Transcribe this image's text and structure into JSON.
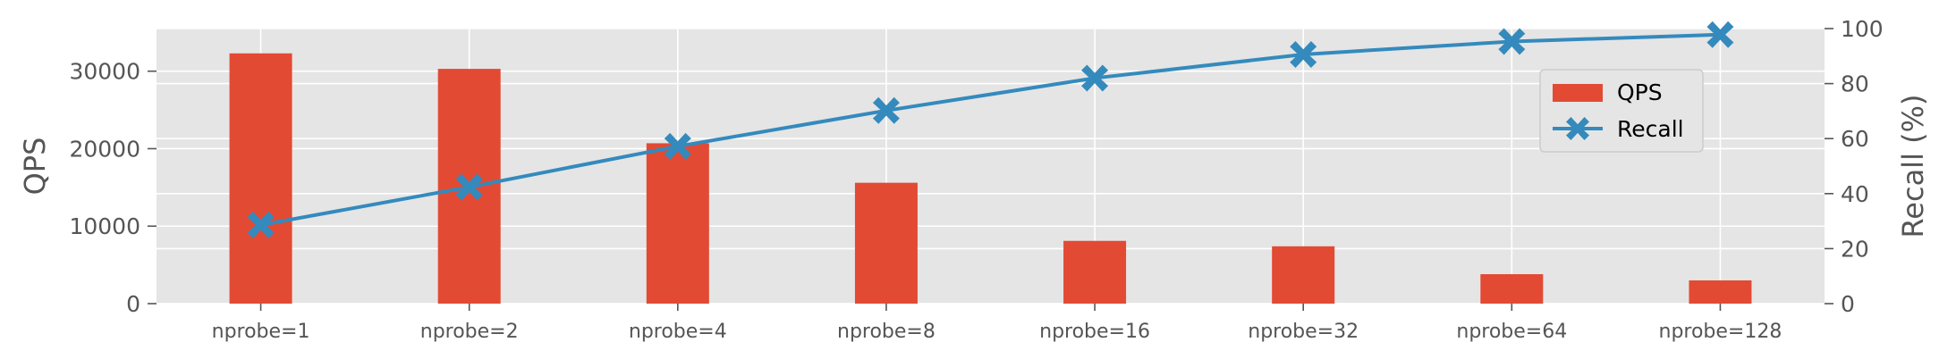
{
  "chart_data": {
    "type": "bar+line",
    "categories": [
      "nprobe=1",
      "nprobe=2",
      "nprobe=4",
      "nprobe=8",
      "nprobe=16",
      "nprobe=32",
      "nprobe=64",
      "nprobe=128"
    ],
    "series": [
      {
        "name": "QPS",
        "type": "bar",
        "axis": "left",
        "color": "#E24A33",
        "values": [
          32300,
          30300,
          20700,
          15600,
          8100,
          7400,
          3800,
          3000
        ]
      },
      {
        "name": "Recall",
        "type": "line",
        "axis": "right",
        "color": "#348ABD",
        "marker": "x-filled",
        "values": [
          28.6,
          42.4,
          57.2,
          70.2,
          82.0,
          90.6,
          95.3,
          97.8
        ]
      }
    ],
    "ylabel_left": "QPS",
    "ylabel_right": "Recall (%)",
    "ylim_left": [
      0,
      35500
    ],
    "yticks_left": [
      "0",
      "10000",
      "20000",
      "30000"
    ],
    "ylim_right": [
      0,
      100
    ],
    "yticks_right": [
      "0",
      "20",
      "40",
      "60",
      "80",
      "100"
    ],
    "grid": true,
    "background": "#E5E5E5",
    "legend_position": "upper-right"
  }
}
